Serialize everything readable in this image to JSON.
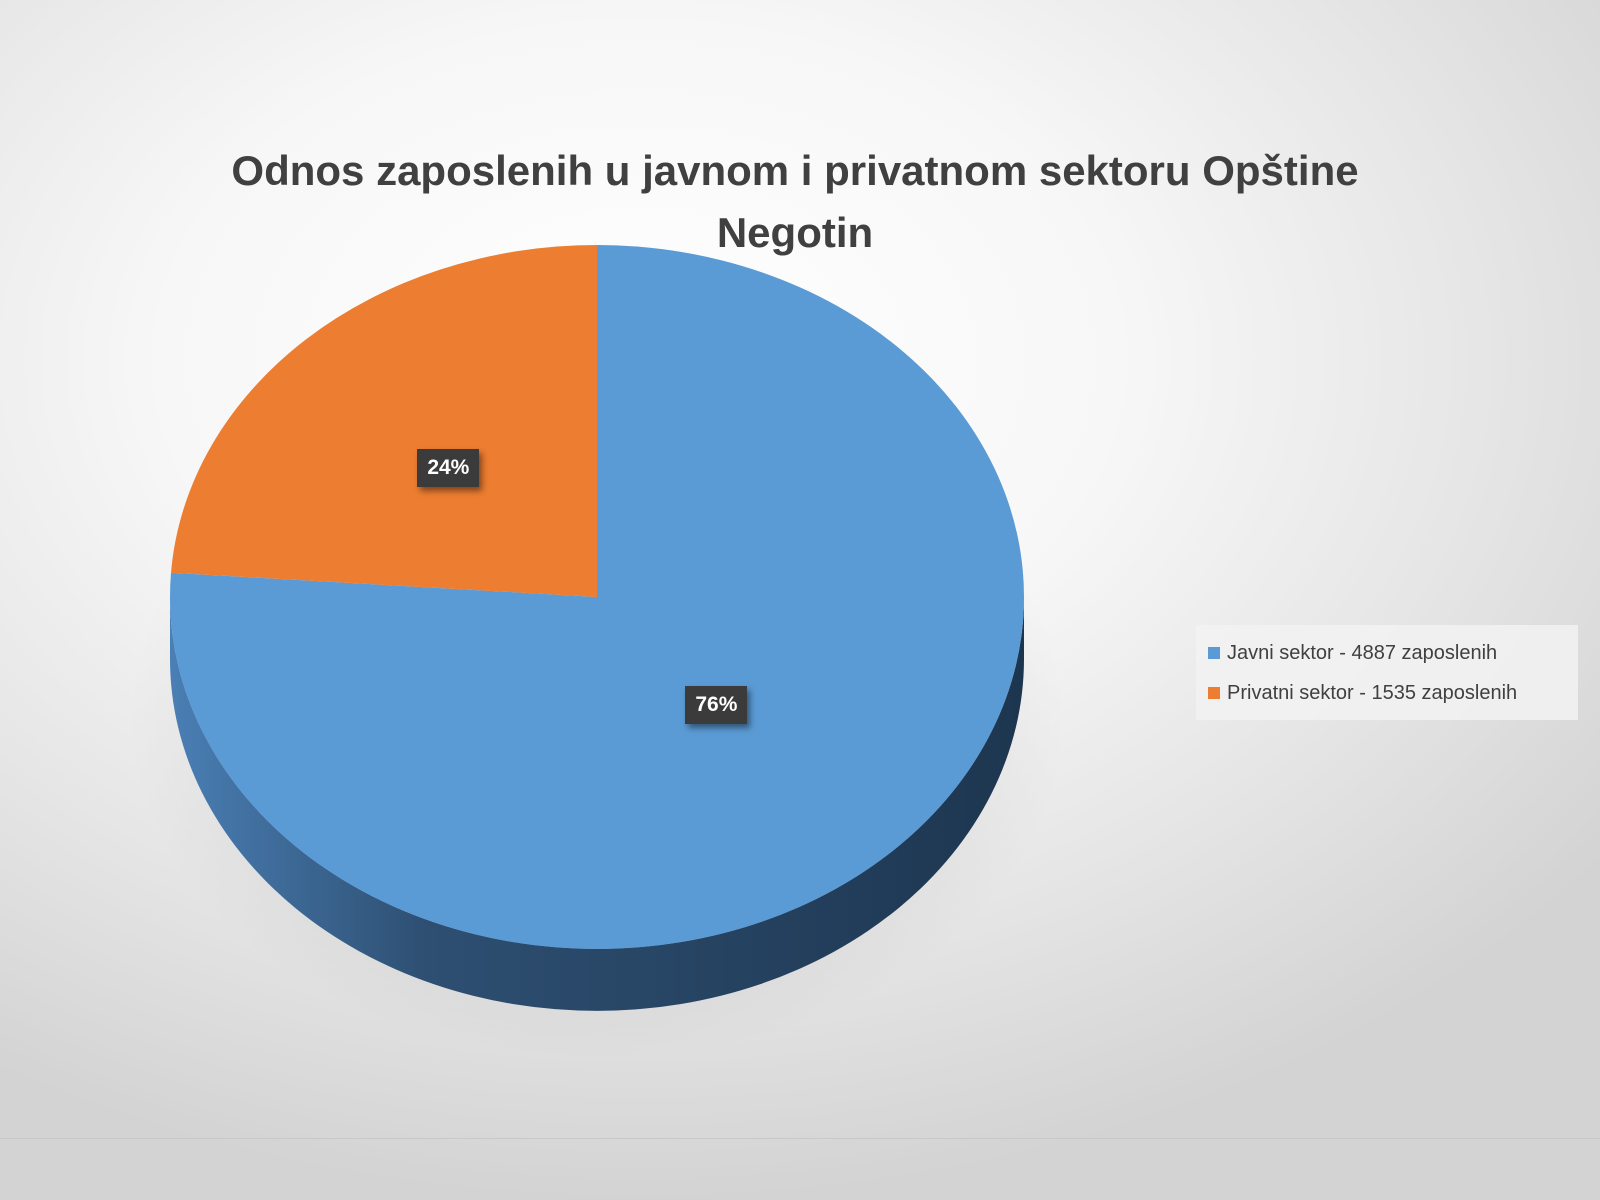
{
  "chart_data": {
    "type": "pie",
    "title": "Odnos zaposlenih u javnom i privatnom sektoru Opštine Negotin",
    "categories": [
      "Javni sektor - 4887 zaposlenih",
      "Privatni sektor - 1535 zaposlenih"
    ],
    "values": [
      4887,
      1535
    ],
    "data_labels": [
      "76%",
      "24%"
    ],
    "colors": [
      "#5B9BD5",
      "#ED7D31"
    ],
    "legend_position": "right",
    "style": "3d"
  }
}
